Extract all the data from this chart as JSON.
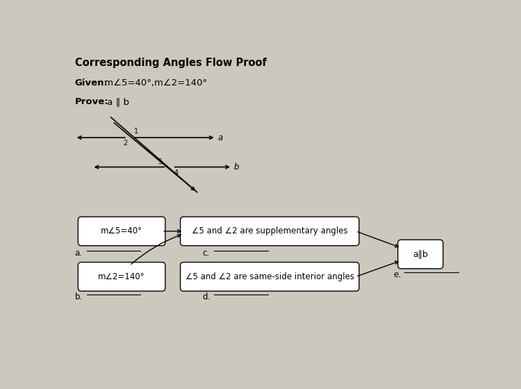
{
  "title": "Corresponding Angles Flow Proof",
  "given_bold": "Given:",
  "given_rest": " m∠5=40°,m∠2=140°",
  "prove_bold": "Prove:",
  "prove_rest": " a ∥ b",
  "background_color": "#ccc8be",
  "box1_text": "m∠5=40°",
  "box2_text": "∠5 and ∠2 are supplementary angles",
  "box3_text": "m∠2=140°",
  "box4_text": "∠5 and ∠2 are same-side interior angles",
  "box5_text": "a∥b",
  "label_a": "a.",
  "label_b": "b.",
  "label_c": "c.",
  "label_d": "d.",
  "label_e": "e.",
  "line_label_a": "a",
  "line_label_b": "b",
  "angle_labels": [
    "1",
    "2",
    "5",
    "4"
  ]
}
